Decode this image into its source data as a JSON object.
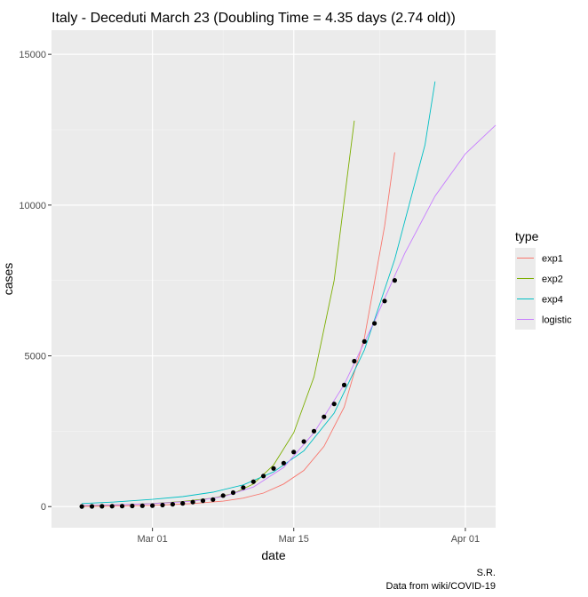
{
  "chart_data": {
    "type": "line",
    "title": "Italy - Deceduti March 23 (Doubling Time = 4.35 days (2.74 old))",
    "xlabel": "date",
    "ylabel": "cases",
    "x_axis_type": "date",
    "xlim": [
      "2020-02-20",
      "2020-04-04"
    ],
    "ylim": [
      -700,
      15800
    ],
    "x_ticks": [
      {
        "date": "2020-03-01",
        "label": "Mar 01"
      },
      {
        "date": "2020-03-15",
        "label": "Mar 15"
      },
      {
        "date": "2020-04-01",
        "label": "Apr 01"
      }
    ],
    "y_ticks": [
      0,
      5000,
      10000,
      15000
    ],
    "y_tick_labels": [
      "0",
      "5000",
      "10000",
      "15000"
    ],
    "grid": true,
    "panel_background": "#ebebeb",
    "legend": {
      "title": "type",
      "placement": "right"
    },
    "observed_points": {
      "color": "#000000",
      "points": [
        {
          "x": "2020-02-23",
          "y": 3
        },
        {
          "x": "2020-02-24",
          "y": 7
        },
        {
          "x": "2020-02-25",
          "y": 10
        },
        {
          "x": "2020-02-26",
          "y": 12
        },
        {
          "x": "2020-02-27",
          "y": 17
        },
        {
          "x": "2020-02-28",
          "y": 21
        },
        {
          "x": "2020-02-29",
          "y": 29
        },
        {
          "x": "2020-03-01",
          "y": 34
        },
        {
          "x": "2020-03-02",
          "y": 52
        },
        {
          "x": "2020-03-03",
          "y": 79
        },
        {
          "x": "2020-03-04",
          "y": 107
        },
        {
          "x": "2020-03-05",
          "y": 148
        },
        {
          "x": "2020-03-06",
          "y": 197
        },
        {
          "x": "2020-03-07",
          "y": 233
        },
        {
          "x": "2020-03-08",
          "y": 366
        },
        {
          "x": "2020-03-09",
          "y": 463
        },
        {
          "x": "2020-03-10",
          "y": 631
        },
        {
          "x": "2020-03-11",
          "y": 827
        },
        {
          "x": "2020-03-12",
          "y": 1016
        },
        {
          "x": "2020-03-13",
          "y": 1266
        },
        {
          "x": "2020-03-14",
          "y": 1441
        },
        {
          "x": "2020-03-15",
          "y": 1809
        },
        {
          "x": "2020-03-16",
          "y": 2158
        },
        {
          "x": "2020-03-17",
          "y": 2503
        },
        {
          "x": "2020-03-18",
          "y": 2978
        },
        {
          "x": "2020-03-19",
          "y": 3405
        },
        {
          "x": "2020-03-20",
          "y": 4032
        },
        {
          "x": "2020-03-21",
          "y": 4825
        },
        {
          "x": "2020-03-22",
          "y": 5476
        },
        {
          "x": "2020-03-23",
          "y": 6077
        },
        {
          "x": "2020-03-24",
          "y": 6820
        },
        {
          "x": "2020-03-25",
          "y": 7503
        }
      ]
    },
    "series": [
      {
        "name": "exp1",
        "color": "#F8766D",
        "points": [
          {
            "x": "2020-02-23",
            "y": 5
          },
          {
            "x": "2020-02-26",
            "y": 15
          },
          {
            "x": "2020-03-01",
            "y": 40
          },
          {
            "x": "2020-03-05",
            "y": 100
          },
          {
            "x": "2020-03-08",
            "y": 180
          },
          {
            "x": "2020-03-10",
            "y": 280
          },
          {
            "x": "2020-03-12",
            "y": 450
          },
          {
            "x": "2020-03-14",
            "y": 750
          },
          {
            "x": "2020-03-16",
            "y": 1200
          },
          {
            "x": "2020-03-18",
            "y": 2000
          },
          {
            "x": "2020-03-20",
            "y": 3300
          },
          {
            "x": "2020-03-22",
            "y": 5600
          },
          {
            "x": "2020-03-24",
            "y": 9300
          },
          {
            "x": "2020-03-25",
            "y": 11750
          }
        ]
      },
      {
        "name": "exp2",
        "color": "#7CAE00",
        "points": [
          {
            "x": "2020-02-23",
            "y": 30
          },
          {
            "x": "2020-02-26",
            "y": 50
          },
          {
            "x": "2020-03-01",
            "y": 100
          },
          {
            "x": "2020-03-04",
            "y": 170
          },
          {
            "x": "2020-03-07",
            "y": 280
          },
          {
            "x": "2020-03-09",
            "y": 430
          },
          {
            "x": "2020-03-11",
            "y": 750
          },
          {
            "x": "2020-03-13",
            "y": 1380
          },
          {
            "x": "2020-03-15",
            "y": 2450
          },
          {
            "x": "2020-03-17",
            "y": 4300
          },
          {
            "x": "2020-03-19",
            "y": 7500
          },
          {
            "x": "2020-03-21",
            "y": 12800
          }
        ]
      },
      {
        "name": "exp4",
        "color": "#00BFC4",
        "points": [
          {
            "x": "2020-02-23",
            "y": 100
          },
          {
            "x": "2020-02-26",
            "y": 150
          },
          {
            "x": "2020-03-01",
            "y": 240
          },
          {
            "x": "2020-03-04",
            "y": 330
          },
          {
            "x": "2020-03-07",
            "y": 480
          },
          {
            "x": "2020-03-10",
            "y": 720
          },
          {
            "x": "2020-03-13",
            "y": 1150
          },
          {
            "x": "2020-03-16",
            "y": 1850
          },
          {
            "x": "2020-03-19",
            "y": 3100
          },
          {
            "x": "2020-03-22",
            "y": 5200
          },
          {
            "x": "2020-03-25",
            "y": 8200
          },
          {
            "x": "2020-03-28",
            "y": 12000
          },
          {
            "x": "2020-03-29",
            "y": 14100
          }
        ]
      },
      {
        "name": "logistic",
        "color": "#C77CFF",
        "points": [
          {
            "x": "2020-02-23",
            "y": 40
          },
          {
            "x": "2020-02-26",
            "y": 55
          },
          {
            "x": "2020-03-01",
            "y": 95
          },
          {
            "x": "2020-03-05",
            "y": 180
          },
          {
            "x": "2020-03-08",
            "y": 330
          },
          {
            "x": "2020-03-11",
            "y": 650
          },
          {
            "x": "2020-03-14",
            "y": 1300
          },
          {
            "x": "2020-03-17",
            "y": 2450
          },
          {
            "x": "2020-03-20",
            "y": 4050
          },
          {
            "x": "2020-03-23",
            "y": 6150
          },
          {
            "x": "2020-03-26",
            "y": 8400
          },
          {
            "x": "2020-03-29",
            "y": 10300
          },
          {
            "x": "2020-04-01",
            "y": 11700
          },
          {
            "x": "2020-04-04",
            "y": 12650
          }
        ]
      }
    ],
    "caption": [
      "S.R.",
      "Data from wiki/COVID-19"
    ]
  }
}
